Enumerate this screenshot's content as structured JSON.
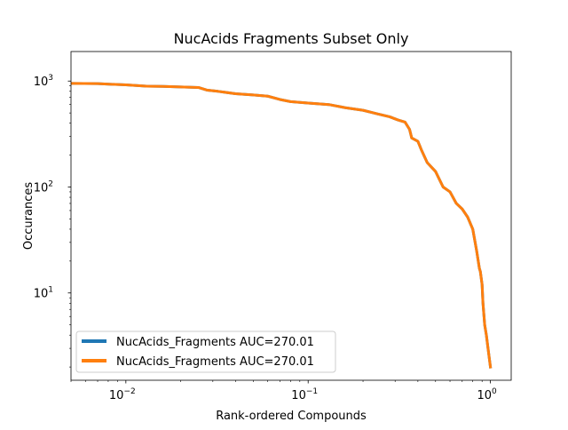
{
  "chart_data": {
    "type": "line",
    "title": "NucAcids Fragments Subset Only",
    "xlabel": "Rank-ordered Compounds",
    "ylabel": "Occurances",
    "xscale": "log",
    "yscale": "log",
    "xlim": [
      0.005,
      1.3
    ],
    "ylim": [
      1.5,
      1900
    ],
    "grid": false,
    "legend_position": "lower-left",
    "xticks": [
      {
        "value": 0.01,
        "base": "10",
        "exp": "−2"
      },
      {
        "value": 0.1,
        "base": "10",
        "exp": "−1"
      },
      {
        "value": 1,
        "base": "10",
        "exp": "0"
      }
    ],
    "yticks": [
      {
        "value": 10,
        "base": "10",
        "exp": "1"
      },
      {
        "value": 100,
        "base": "10",
        "exp": "2"
      },
      {
        "value": 1000,
        "base": "10",
        "exp": "3"
      }
    ],
    "series": [
      {
        "name": "NucAcids_Fragments AUC=270.01",
        "color": "#1f77b4",
        "x": [
          0.005,
          0.007,
          0.01,
          0.013,
          0.016,
          0.02,
          0.025,
          0.028,
          0.032,
          0.04,
          0.05,
          0.06,
          0.07,
          0.08,
          0.1,
          0.13,
          0.16,
          0.2,
          0.24,
          0.28,
          0.31,
          0.34,
          0.36,
          0.37,
          0.4,
          0.42,
          0.45,
          0.5,
          0.55,
          0.6,
          0.65,
          0.7,
          0.75,
          0.8,
          0.84,
          0.87,
          0.88,
          0.9,
          0.91,
          0.93,
          0.95,
          0.97,
          1.0
        ],
        "y": [
          950,
          945,
          920,
          895,
          890,
          880,
          870,
          820,
          800,
          760,
          740,
          720,
          670,
          640,
          620,
          600,
          560,
          530,
          490,
          460,
          430,
          410,
          350,
          290,
          270,
          220,
          170,
          140,
          100,
          90,
          70,
          62,
          52,
          40,
          25,
          17,
          16,
          12,
          8,
          5,
          4,
          3,
          2
        ]
      },
      {
        "name": "NucAcids_Fragments AUC=270.01",
        "color": "#ff7f0e",
        "x": [
          0.005,
          0.007,
          0.01,
          0.013,
          0.016,
          0.02,
          0.025,
          0.028,
          0.032,
          0.04,
          0.05,
          0.06,
          0.07,
          0.08,
          0.1,
          0.13,
          0.16,
          0.2,
          0.24,
          0.28,
          0.31,
          0.34,
          0.36,
          0.37,
          0.4,
          0.42,
          0.45,
          0.5,
          0.55,
          0.6,
          0.65,
          0.7,
          0.75,
          0.8,
          0.84,
          0.87,
          0.88,
          0.9,
          0.91,
          0.93,
          0.95,
          0.97,
          1.0
        ],
        "y": [
          950,
          945,
          920,
          895,
          890,
          880,
          870,
          820,
          800,
          760,
          740,
          720,
          670,
          640,
          620,
          600,
          560,
          530,
          490,
          460,
          430,
          410,
          350,
          290,
          270,
          220,
          170,
          140,
          100,
          90,
          70,
          62,
          52,
          40,
          25,
          17,
          16,
          12,
          8,
          5,
          4,
          3,
          2
        ]
      }
    ]
  }
}
